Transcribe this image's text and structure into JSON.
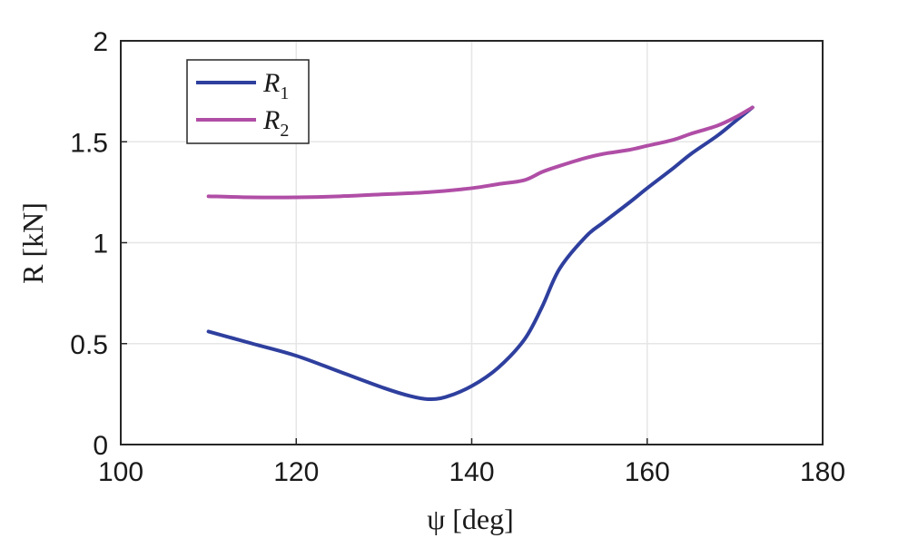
{
  "chart_data": {
    "type": "line",
    "title": "",
    "xlabel": "ψ [deg]",
    "ylabel": "R [kN]",
    "xlim": [
      100,
      180
    ],
    "ylim": [
      0,
      2
    ],
    "xticks": [
      100,
      120,
      140,
      160,
      180
    ],
    "xtick_labels": [
      "100",
      "120",
      "140",
      "160",
      "180"
    ],
    "yticks": [
      0,
      0.5,
      1,
      1.5,
      2
    ],
    "ytick_labels": [
      "0",
      "0.5",
      "1",
      "1.5",
      "2"
    ],
    "grid": true,
    "legend_position": "top-left",
    "series": [
      {
        "name": "R1",
        "name_main": "R",
        "name_sub": "1",
        "color": "#2e3f9e",
        "x": [
          110,
          115,
          120,
          125,
          130,
          133,
          135,
          137,
          140,
          143,
          146,
          148,
          150,
          153,
          155,
          158,
          160,
          163,
          165,
          168,
          170,
          172
        ],
        "y": [
          0.56,
          0.5,
          0.44,
          0.36,
          0.28,
          0.24,
          0.225,
          0.235,
          0.29,
          0.38,
          0.52,
          0.68,
          0.87,
          1.03,
          1.1,
          1.2,
          1.27,
          1.37,
          1.44,
          1.53,
          1.6,
          1.67
        ]
      },
      {
        "name": "R2",
        "name_main": "R",
        "name_sub": "2",
        "color": "#b04ea6",
        "x": [
          110,
          115,
          120,
          125,
          130,
          135,
          140,
          143,
          146,
          148,
          150,
          153,
          155,
          158,
          160,
          163,
          165,
          168,
          170,
          172
        ],
        "y": [
          1.23,
          1.225,
          1.225,
          1.23,
          1.24,
          1.25,
          1.27,
          1.29,
          1.31,
          1.35,
          1.38,
          1.42,
          1.44,
          1.46,
          1.48,
          1.51,
          1.54,
          1.58,
          1.62,
          1.67
        ]
      }
    ]
  }
}
